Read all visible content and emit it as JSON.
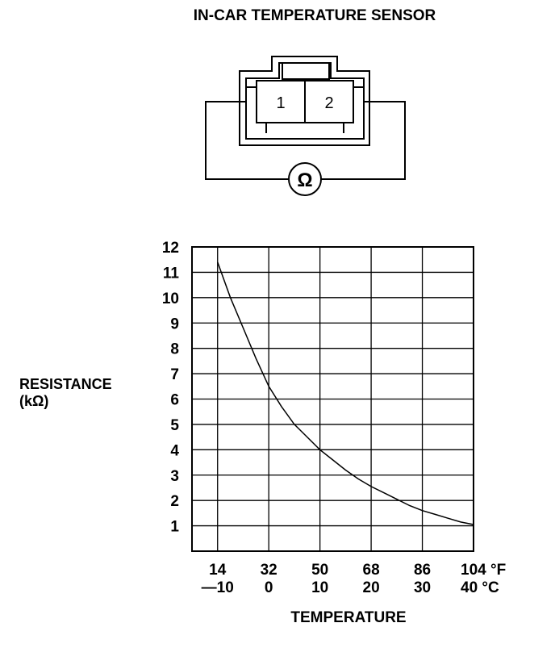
{
  "title": "IN-CAR TEMPERATURE SENSOR",
  "connector": {
    "terminals": [
      "1",
      "2"
    ],
    "meter_symbol": "Ω"
  },
  "chart_data": {
    "type": "line",
    "ylabel_line1": "RESISTANCE",
    "ylabel_line2": "(kΩ)",
    "xlabel": "TEMPERATURE",
    "ylim": [
      0,
      12
    ],
    "xlim_c": [
      -15,
      40
    ],
    "y_ticks": [
      "1",
      "2",
      "3",
      "4",
      "5",
      "6",
      "7",
      "8",
      "9",
      "10",
      "11",
      "12"
    ],
    "x_ticks_f": [
      "14",
      "32",
      "50",
      "68",
      "86",
      "104 °F"
    ],
    "x_ticks_c": [
      "—10",
      "0",
      "10",
      "20",
      "30",
      "40 °C"
    ],
    "x_tick_values_c": [
      -10,
      0,
      10,
      20,
      30,
      40
    ],
    "grid": true,
    "series": [
      {
        "x": [
          -10,
          -7.5,
          -5,
          -2.5,
          0,
          2.5,
          5,
          7.5,
          10,
          12.5,
          15,
          17.5,
          20,
          22.5,
          25,
          27.5,
          30,
          32.5,
          35,
          37.5,
          40
        ],
        "values": [
          11.4,
          10.0,
          8.8,
          7.6,
          6.5,
          5.7,
          5.0,
          4.5,
          4.0,
          3.6,
          3.2,
          2.85,
          2.55,
          2.3,
          2.05,
          1.8,
          1.6,
          1.45,
          1.3,
          1.15,
          1.05
        ]
      }
    ]
  }
}
